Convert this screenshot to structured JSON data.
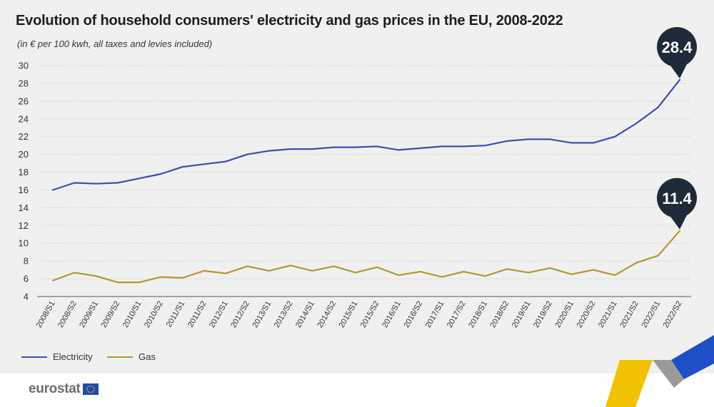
{
  "title": "Evolution of household consumers' electricity and gas prices in the EU, 2008-2022",
  "subtitle": "(in € per 100 kwh, all taxes and levies included)",
  "colors": {
    "electricity": "#3a4fb0",
    "gas": "#b5952f",
    "callout": "#1e2a38",
    "background": "#f0f0f0"
  },
  "legend": [
    {
      "label": "Electricity",
      "color": "#3a4fb0"
    },
    {
      "label": "Gas",
      "color": "#b5952f"
    }
  ],
  "logo": {
    "text": "eurostat",
    "icon": "eu-flag-icon"
  },
  "chart_data": {
    "type": "line",
    "ylim": [
      4,
      30
    ],
    "y_ticks": [
      4,
      6,
      8,
      10,
      12,
      14,
      16,
      18,
      20,
      22,
      24,
      26,
      28,
      30
    ],
    "grid": "horizontal dotted",
    "legend_position": "bottom-left",
    "categories": [
      "2008/S1",
      "2008/S2",
      "2009/S1",
      "2009/S2",
      "2010/S1",
      "2010/S2",
      "2011/S1",
      "2011/S2",
      "2012/S1",
      "2012/S2",
      "2013/S1",
      "2013/S2",
      "2014/S1",
      "2014/S2",
      "2015/S1",
      "2015/S2",
      "2016/S1",
      "2016/S2",
      "2017/S1",
      "2017/S2",
      "2018/S1",
      "2018/S2",
      "2019/S1",
      "2019/S2",
      "2020/S1",
      "2020/S2",
      "2021/S1",
      "2021/S2",
      "2022/S1",
      "2022/S2"
    ],
    "series": [
      {
        "name": "Electricity",
        "values": [
          16.0,
          16.8,
          16.7,
          16.8,
          17.3,
          17.8,
          18.6,
          18.9,
          19.2,
          20.0,
          20.4,
          20.6,
          20.6,
          20.8,
          20.8,
          20.9,
          20.5,
          20.7,
          20.9,
          20.9,
          21.0,
          21.5,
          21.7,
          21.7,
          21.3,
          21.3,
          22.0,
          23.5,
          25.3,
          28.4
        ]
      },
      {
        "name": "Gas",
        "values": [
          5.8,
          6.7,
          6.3,
          5.6,
          5.6,
          6.2,
          6.1,
          6.9,
          6.6,
          7.4,
          6.9,
          7.5,
          6.9,
          7.4,
          6.7,
          7.3,
          6.4,
          6.8,
          6.2,
          6.8,
          6.3,
          7.1,
          6.7,
          7.2,
          6.5,
          7.0,
          6.4,
          7.8,
          8.6,
          11.4
        ]
      }
    ],
    "annotations": [
      {
        "series": "Electricity",
        "label": "28.4"
      },
      {
        "series": "Gas",
        "label": "11.4"
      }
    ]
  }
}
